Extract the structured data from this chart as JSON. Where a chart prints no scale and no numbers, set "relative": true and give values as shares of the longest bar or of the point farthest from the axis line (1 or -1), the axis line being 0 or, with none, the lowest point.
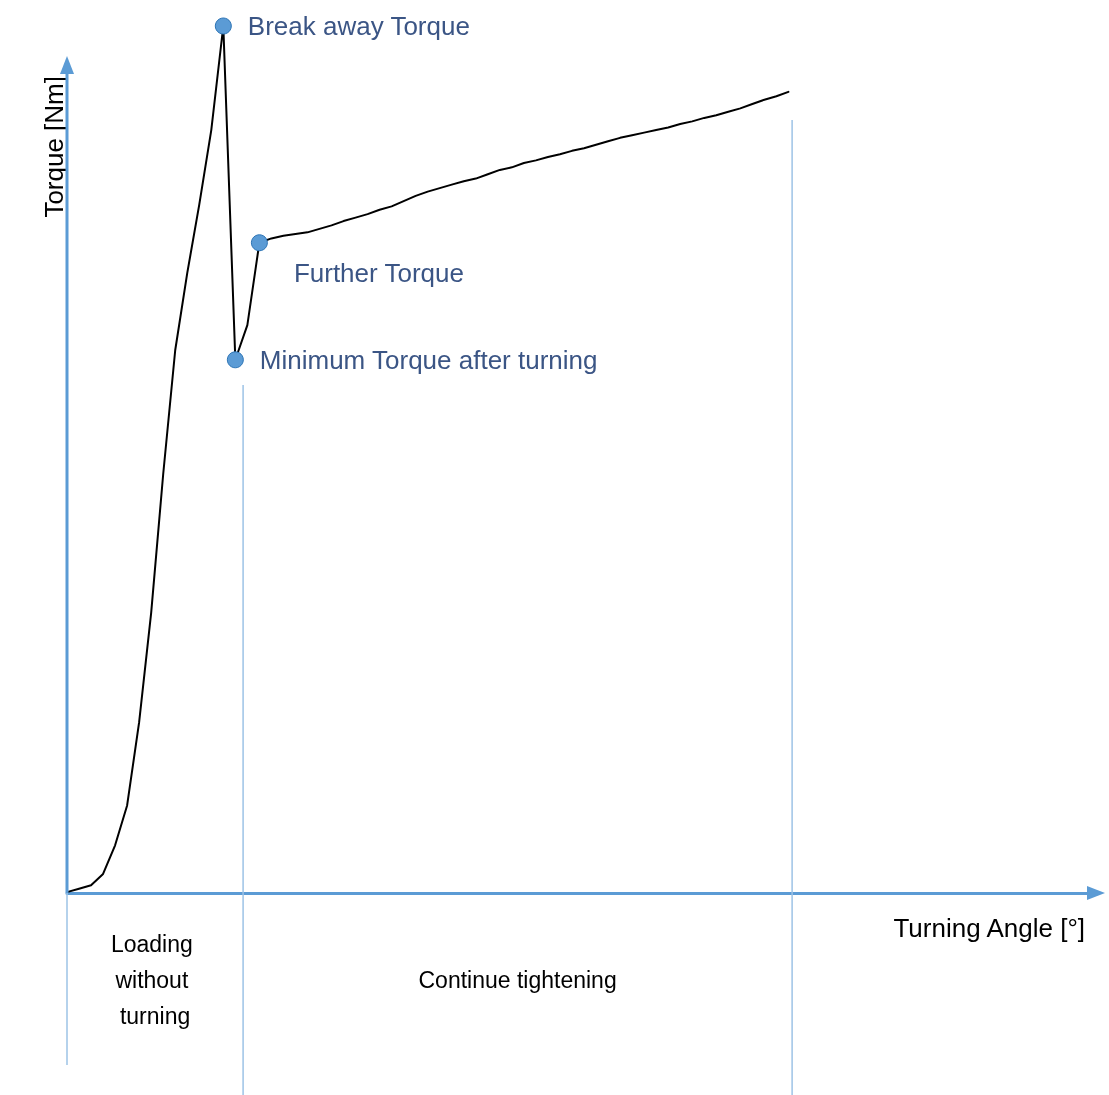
{
  "chart_data": {
    "type": "line",
    "relative": true,
    "xlabel": "Turning Angle [°]",
    "ylabel": "Torque [Nm]",
    "grid": false,
    "marker": "none",
    "line_style": "solid",
    "categories": [
      null,
      null,
      null,
      null,
      null,
      null,
      null,
      null,
      null,
      null,
      null,
      null,
      null,
      null,
      null,
      null,
      null,
      null,
      null,
      null,
      null,
      null,
      null,
      null,
      null,
      null,
      null,
      null,
      null,
      null,
      null,
      null,
      null,
      null,
      null,
      null,
      null,
      null,
      null,
      null,
      null,
      null,
      null,
      null,
      null,
      null,
      null,
      null,
      null,
      null,
      null,
      null,
      null,
      null,
      null,
      null,
      null,
      null,
      null,
      null,
      null,
      null,
      null,
      null,
      null,
      null,
      null,
      null,
      null,
      null,
      null,
      null,
      null,
      null,
      null,
      null,
      null,
      null,
      null,
      null,
      null,
      null,
      null,
      null,
      null,
      null
    ],
    "series": [
      {
        "color": "#000000",
        "values": [
          0.001,
          0.005,
          0.009,
          0.022,
          0.055,
          0.101,
          0.197,
          0.323,
          0.483,
          0.626,
          0.715,
          0.794,
          0.88,
          1,
          0.615,
          0.655,
          0.75,
          0.755,
          0.758,
          0.76,
          0.762,
          0.766,
          0.77,
          0.775,
          0.779,
          0.783,
          0.788,
          0.792,
          0.798,
          0.804,
          0.809,
          0.813,
          0.817,
          0.821,
          0.824,
          0.829,
          0.834,
          0.837,
          0.842,
          0.845,
          0.849,
          0.852,
          0.856,
          0.859,
          0.863,
          0.867,
          0.871,
          0.874,
          0.877,
          0.88,
          0.883,
          0.887,
          0.89,
          0.894,
          0.897,
          0.901,
          0.905,
          0.91,
          0.915,
          0.919,
          0.924,
          null,
          null,
          null,
          null,
          null,
          null,
          null,
          null,
          null,
          null,
          null,
          null,
          null,
          null,
          null,
          null,
          null,
          null,
          null,
          null,
          null,
          null,
          null,
          null,
          null
        ]
      }
    ],
    "annotations": [
      "Break away Torque",
      "Further Torque",
      "Minimum Torque after turning",
      "Loading without turning",
      "Continue tightening"
    ]
  }
}
